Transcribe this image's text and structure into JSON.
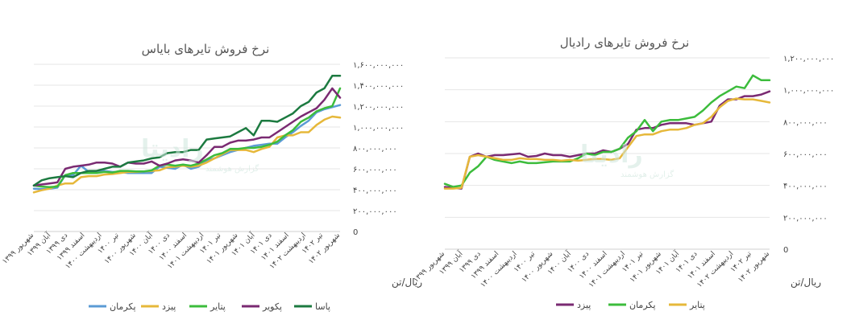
{
  "watermark": {
    "main": "رادیتا",
    "sub": "گزارش هوشمند"
  },
  "chart_data": [
    {
      "type": "line",
      "title": "نرخ فروش تایرهای بایاس",
      "ylabel": "ریال/تن",
      "xlabel": "",
      "ylim": [
        0,
        1600000000
      ],
      "yticks": [
        {
          "v": 0,
          "label": "0"
        },
        {
          "v": 200000000,
          "label": "۲۰۰,۰۰۰,۰۰۰"
        },
        {
          "v": 400000000,
          "label": "۴۰۰,۰۰۰,۰۰۰"
        },
        {
          "v": 600000000,
          "label": "۶۰۰,۰۰۰,۰۰۰"
        },
        {
          "v": 800000000,
          "label": "۸۰۰,۰۰۰,۰۰۰"
        },
        {
          "v": 1000000000,
          "label": "۱,۰۰۰,۰۰۰,۰۰۰"
        },
        {
          "v": 1200000000,
          "label": "۱,۲۰۰,۰۰۰,۰۰۰"
        },
        {
          "v": 1400000000,
          "label": "۱,۴۰۰,۰۰۰,۰۰۰"
        },
        {
          "v": 1600000000,
          "label": "۱,۶۰۰,۰۰۰,۰۰۰"
        }
      ],
      "xtick_labels": [
        "شهریور ۱۳۹۹",
        "آبان ۱۳۹۹",
        "دی ۱۳۹۹",
        "اسفند ۱۳۹۹",
        "اردیبهشت ۱۴۰۰",
        "تیر ۱۴۰۰",
        "شهریور ۱۴۰۰",
        "آبان ۱۴۰۰",
        "دی ۱۴۰۰",
        "اسفند ۱۴۰۰",
        "اردیبهشت ۱۴۰۱",
        "تیر ۱۴۰۱",
        "شهریور ۱۴۰۱",
        "آبان ۱۴۰۱",
        "دی ۱۴۰۱",
        "اسفند ۱۴۰۱",
        "اردیبهشت ۱۴۰۲",
        "تیر ۱۴۰۲",
        "شهریور ۱۴۰۲"
      ],
      "series": [
        {
          "name": "پکرمان",
          "color": "#5b9bd5",
          "values": [
            410,
            405,
            410,
            420,
            540,
            540,
            630,
            570,
            580,
            580,
            570,
            570,
            560,
            560,
            560,
            560,
            620,
            610,
            600,
            640,
            600,
            620,
            680,
            700,
            730,
            760,
            780,
            800,
            820,
            830,
            840,
            840,
            900,
            950,
            1010,
            1060,
            1140,
            1170,
            1190,
            1210
          ]
        },
        {
          "name": "پیزد",
          "color": "#e6b83a",
          "values": [
            375,
            395,
            410,
            440,
            460,
            460,
            520,
            530,
            530,
            545,
            550,
            560,
            570,
            570,
            575,
            580,
            585,
            615,
            620,
            630,
            620,
            630,
            660,
            700,
            740,
            780,
            780,
            780,
            760,
            790,
            810,
            900,
            920,
            920,
            950,
            950,
            1020,
            1070,
            1100,
            1090
          ]
        },
        {
          "name": "پتایر",
          "color": "#3cbc3c",
          "values": [
            440,
            430,
            425,
            430,
            540,
            560,
            560,
            560,
            560,
            570,
            565,
            580,
            580,
            575,
            575,
            585,
            630,
            640,
            630,
            640,
            630,
            650,
            690,
            730,
            750,
            790,
            790,
            800,
            800,
            810,
            830,
            860,
            920,
            970,
            1050,
            1090,
            1150,
            1180,
            1200,
            1370
          ]
        },
        {
          "name": "پکویر",
          "color": "#7a2a72",
          "values": [
            440,
            450,
            460,
            470,
            600,
            620,
            630,
            640,
            660,
            660,
            650,
            620,
            660,
            650,
            650,
            670,
            630,
            650,
            680,
            690,
            680,
            660,
            730,
            810,
            810,
            850,
            870,
            870,
            880,
            900,
            900,
            950,
            1000,
            1050,
            1100,
            1140,
            1180,
            1260,
            1370,
            1280
          ]
        },
        {
          "name": "پاسا",
          "color": "#1c7a40",
          "values": [
            440,
            490,
            510,
            520,
            530,
            520,
            560,
            580,
            580,
            600,
            620,
            620,
            660,
            670,
            680,
            700,
            710,
            750,
            760,
            760,
            780,
            780,
            880,
            890,
            900,
            910,
            950,
            990,
            920,
            1060,
            1060,
            1050,
            1090,
            1130,
            1200,
            1240,
            1330,
            1370,
            1490,
            1490
          ]
        }
      ]
    },
    {
      "type": "line",
      "title": "نرخ فروش تایرهای رادیال",
      "ylabel": "ریال/تن",
      "xlabel": "",
      "ylim": [
        0,
        1200000000
      ],
      "yticks": [
        {
          "v": 0,
          "label": "0"
        },
        {
          "v": 200000000,
          "label": "۲۰۰,۰۰۰,۰۰۰"
        },
        {
          "v": 400000000,
          "label": "۴۰۰,۰۰۰,۰۰۰"
        },
        {
          "v": 600000000,
          "label": "۶۰۰,۰۰۰,۰۰۰"
        },
        {
          "v": 800000000,
          "label": "۸۰۰,۰۰۰,۰۰۰"
        },
        {
          "v": 1000000000,
          "label": "۱,۰۰۰,۰۰۰,۰۰۰"
        },
        {
          "v": 1200000000,
          "label": "۱,۲۰۰,۰۰۰,۰۰۰"
        }
      ],
      "xtick_labels": [
        "شهریور ۱۳۹۹",
        "آبان ۱۳۹۹",
        "دی ۱۳۹۹",
        "اسفند ۱۳۹۹",
        "اردیبهشت ۱۴۰۰",
        "تیر ۱۴۰۰",
        "شهریور ۱۴۰۰",
        "آبان ۱۴۰۰",
        "دی ۱۴۰۰",
        "اسفند ۱۴۰۰",
        "اردیبهشت ۱۴۰۱",
        "تیر ۱۴۰۱",
        "شهریور ۱۴۰۱",
        "آبان ۱۴۰۱",
        "دی ۱۴۰۱",
        "اسفند ۱۴۰۱",
        "اردیبهشت ۱۴۰۲",
        "تیر ۱۴۰۲",
        "شهریور ۱۴۰۲"
      ],
      "series": [
        {
          "name": "پیزد",
          "color": "#7a2a72",
          "values": [
            390,
            385,
            380,
            580,
            600,
            580,
            590,
            590,
            595,
            600,
            580,
            585,
            600,
            590,
            590,
            580,
            590,
            600,
            600,
            620,
            610,
            630,
            660,
            750,
            760,
            760,
            780,
            790,
            790,
            790,
            780,
            790,
            800,
            900,
            940,
            940,
            960,
            960,
            970,
            990
          ]
        },
        {
          "name": "پکرمان",
          "color": "#3cbc3c",
          "values": [
            410,
            390,
            400,
            480,
            520,
            580,
            560,
            550,
            540,
            550,
            540,
            540,
            545,
            550,
            550,
            550,
            570,
            600,
            590,
            610,
            610,
            630,
            700,
            740,
            810,
            740,
            800,
            810,
            810,
            820,
            830,
            870,
            920,
            960,
            990,
            1020,
            1010,
            1090,
            1060,
            1060
          ]
        },
        {
          "name": "پتایر",
          "color": "#e6b83a",
          "values": [
            380,
            380,
            385,
            580,
            590,
            580,
            570,
            560,
            560,
            570,
            565,
            565,
            560,
            560,
            555,
            560,
            555,
            560,
            565,
            565,
            560,
            570,
            640,
            710,
            720,
            720,
            740,
            750,
            750,
            760,
            780,
            790,
            830,
            890,
            930,
            945,
            940,
            940,
            930,
            920
          ]
        }
      ]
    }
  ]
}
